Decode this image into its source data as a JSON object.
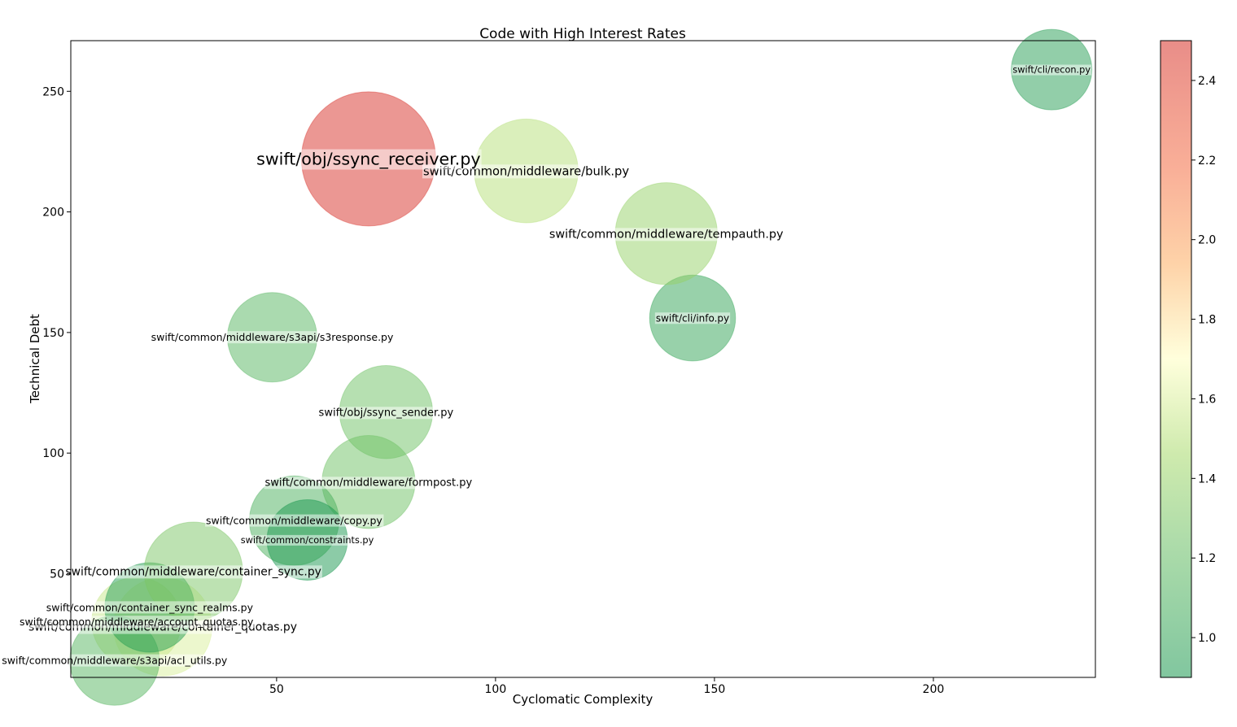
{
  "chart_data": {
    "type": "scatter",
    "title": "Code with High Interest Rates",
    "xlabel": "Cyclomatic Complexity",
    "ylabel": "Technical Debt",
    "xlim": [
      3,
      237
    ],
    "ylim": [
      7,
      271
    ],
    "xticks": [
      50,
      100,
      150,
      200
    ],
    "yticks": [
      50,
      100,
      150,
      200,
      250
    ],
    "colorbar": {
      "range": [
        0.9,
        2.5
      ],
      "ticks": [
        1.0,
        1.2,
        1.4,
        1.6,
        1.8,
        2.0,
        2.2,
        2.4
      ],
      "tick_labels": [
        "1.0",
        "1.2",
        "1.4",
        "1.6",
        "1.8",
        "2.0",
        "2.2",
        "2.4"
      ],
      "colormap": "RdYlGn_r"
    },
    "grid": false,
    "points": [
      {
        "label": "swift/common/middleware/container_quotas.py",
        "x": 24,
        "y": 28,
        "rate": 1.6,
        "size": 0.55
      },
      {
        "label": "swift/common/middleware/account_quotas.py",
        "x": 18,
        "y": 30,
        "rate": 1.55,
        "size": 0.5
      },
      {
        "label": "swift/common/middleware/s3api/acl_utils.py",
        "x": 13,
        "y": 14,
        "rate": 1.15,
        "size": 0.5
      },
      {
        "label": "swift/common/container_sync_realms.py",
        "x": 21,
        "y": 36,
        "rate": 0.95,
        "size": 0.5
      },
      {
        "label": "swift/common/middleware/container_sync.py",
        "x": 31,
        "y": 51,
        "rate": 1.3,
        "size": 0.55
      },
      {
        "label": "swift/common/middleware/formpost.py",
        "x": 71,
        "y": 88,
        "rate": 1.25,
        "size": 0.52
      },
      {
        "label": "swift/common/middleware/copy.py",
        "x": 54,
        "y": 72,
        "rate": 1.1,
        "size": 0.5
      },
      {
        "label": "swift/common/constraints.py",
        "x": 57,
        "y": 64,
        "rate": 0.9,
        "size": 0.45
      },
      {
        "label": "swift/obj/ssync_sender.py",
        "x": 75,
        "y": 117,
        "rate": 1.25,
        "size": 0.52
      },
      {
        "label": "swift/common/middleware/s3api/s3response.py",
        "x": 49,
        "y": 148,
        "rate": 1.15,
        "size": 0.5
      },
      {
        "label": "swift/cli/info.py",
        "x": 145,
        "y": 156,
        "rate": 1.0,
        "size": 0.48
      },
      {
        "label": "swift/common/middleware/tempauth.py",
        "x": 139,
        "y": 191,
        "rate": 1.4,
        "size": 0.57
      },
      {
        "label": "swift/common/middleware/bulk.py",
        "x": 107,
        "y": 217,
        "rate": 1.5,
        "size": 0.58
      },
      {
        "label": "swift/obj/ssync_receiver.py",
        "x": 71,
        "y": 222,
        "rate": 2.5,
        "size": 0.75
      },
      {
        "label": "swift/cli/recon.py",
        "x": 227,
        "y": 259,
        "rate": 0.95,
        "size": 0.45
      }
    ]
  }
}
